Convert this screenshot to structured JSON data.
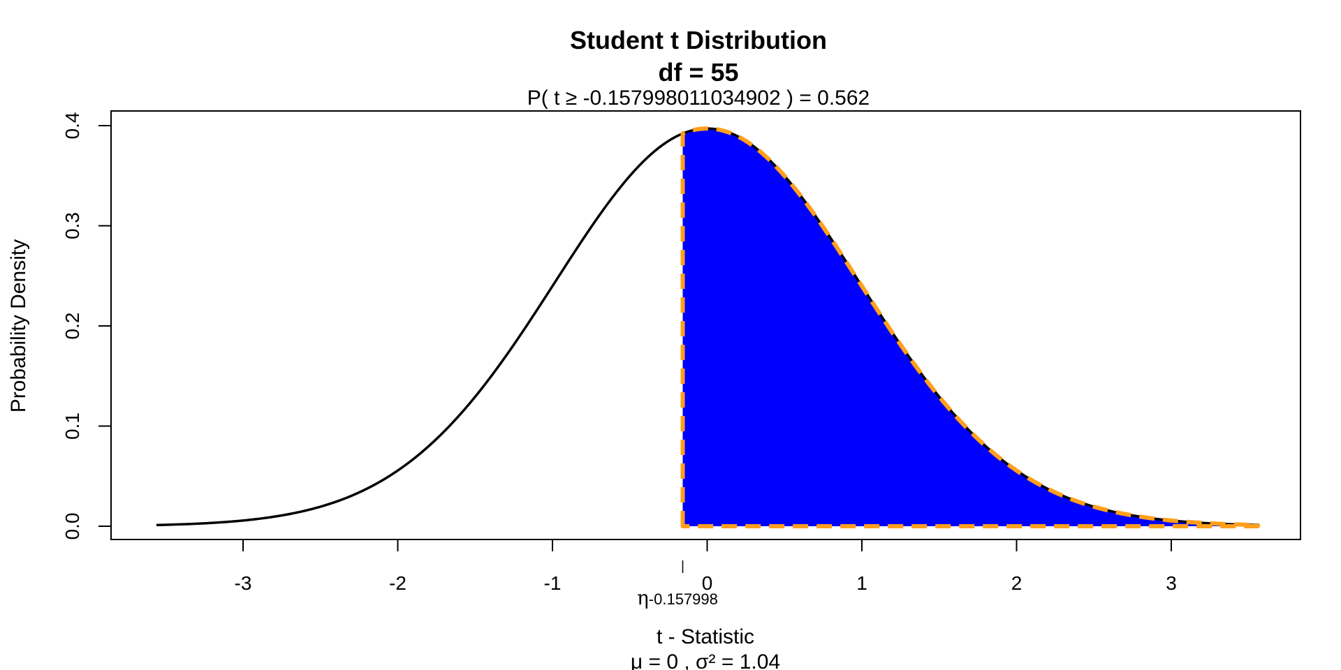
{
  "chart_data": {
    "type": "area",
    "title": "Student t Distribution",
    "df_label": "df  =  55",
    "subtitle": "P(  t  ≥  -0.157998011034902  ) = 0.562",
    "xlabel": "t - Statistic",
    "xlabel_sub": "μ =  0 , σ² =  1.04",
    "ylabel": "Probability Density",
    "df": 55,
    "critical_value": -0.157998011034902,
    "critical_label_symbol": "η",
    "critical_label_value": "-0.157998",
    "probability": 0.562,
    "xlim": [
      -3.56,
      3.56
    ],
    "ylim": [
      0,
      0.4
    ],
    "x_ticks": [
      -3,
      -2,
      -1,
      0,
      1,
      2,
      3
    ],
    "x_tick_labels": [
      "-3",
      "-2",
      "-1",
      "0",
      "1",
      "2",
      "3"
    ],
    "y_ticks": [
      0.0,
      0.1,
      0.2,
      0.3,
      0.4
    ],
    "y_tick_labels": [
      "0.0",
      "0.1",
      "0.2",
      "0.3",
      "0.4"
    ],
    "shaded_region": "right-tail",
    "curve_color": "#000000",
    "fill_color": "#0000ff",
    "outline_color": "#ff9f1c",
    "grid": false,
    "legend": "none"
  }
}
